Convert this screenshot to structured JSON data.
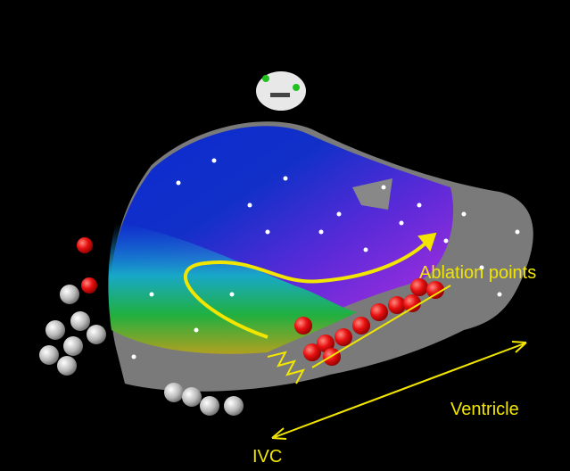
{
  "annotations": {
    "ablation_points": "Ablation points",
    "ventricle": "Ventricle",
    "ivc": "IVC"
  }
}
